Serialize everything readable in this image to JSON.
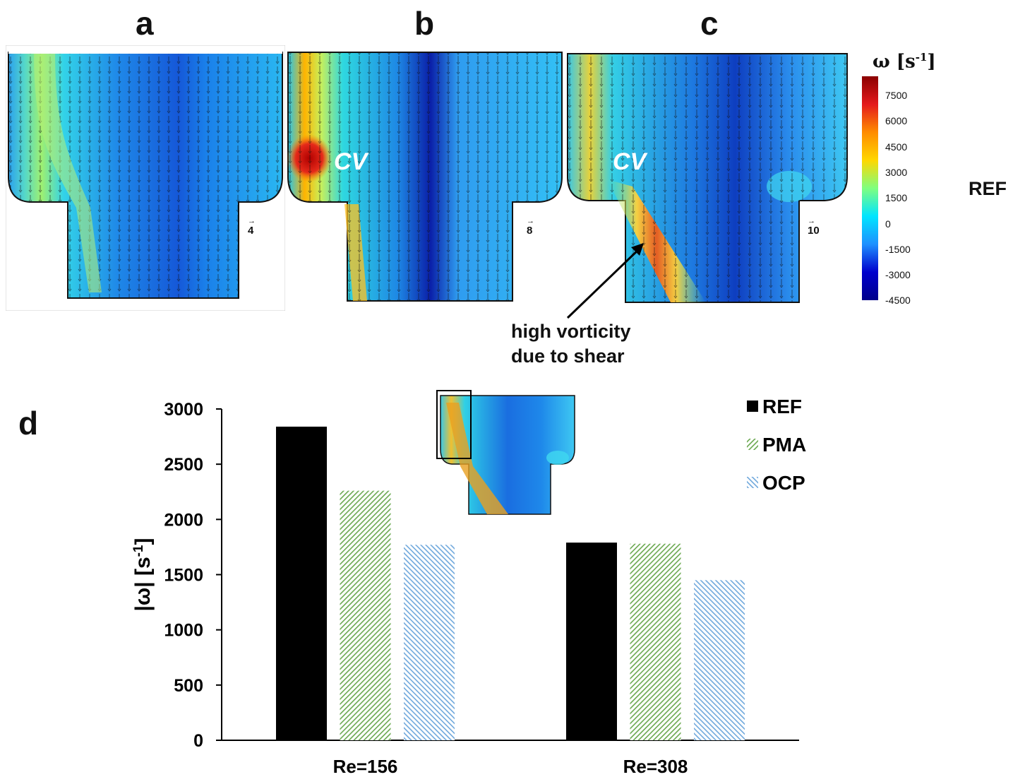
{
  "panels": {
    "a": "a",
    "b": "b",
    "c": "c",
    "d": "d"
  },
  "colorbar": {
    "title": "ω [s",
    "title_exponent": "-1",
    "title_close": "]",
    "ticks": [
      "7500",
      "6000",
      "4500",
      "3000",
      "1500",
      "0",
      "-1500",
      "-3000",
      "-4500"
    ],
    "gradient": [
      "#8b0000",
      "#e41a1c",
      "#ff8c00",
      "#ffd700",
      "#7fff7f",
      "#00e5ff",
      "#1e90ff",
      "#0000cd",
      "#00008b"
    ]
  },
  "row_label": "REF",
  "vortex_label": "CV",
  "vector_scales": {
    "a": "4",
    "b": "8",
    "c": "10"
  },
  "annotation": {
    "line1": "high vorticity",
    "line2": "due to shear"
  },
  "chart_data": {
    "type": "bar",
    "categories": [
      "Re=156",
      "Re=308"
    ],
    "series": [
      {
        "name": "REF",
        "values": [
          2840,
          1790
        ],
        "color": "#000000",
        "pattern": "solid"
      },
      {
        "name": "PMA",
        "values": [
          2260,
          1780
        ],
        "color": "#6aa84f",
        "pattern": "hatch"
      },
      {
        "name": "OCP",
        "values": [
          1770,
          1450
        ],
        "color": "#6fa8dc",
        "pattern": "hatch"
      }
    ],
    "ylabel_main": "|ω| [s",
    "ylabel_exponent": "-1",
    "ylabel_close": "]",
    "ylim": [
      0,
      3000
    ],
    "yticks": [
      0,
      500,
      1000,
      1500,
      2000,
      2500,
      3000
    ],
    "legend_position": "top-right",
    "grid": false
  }
}
